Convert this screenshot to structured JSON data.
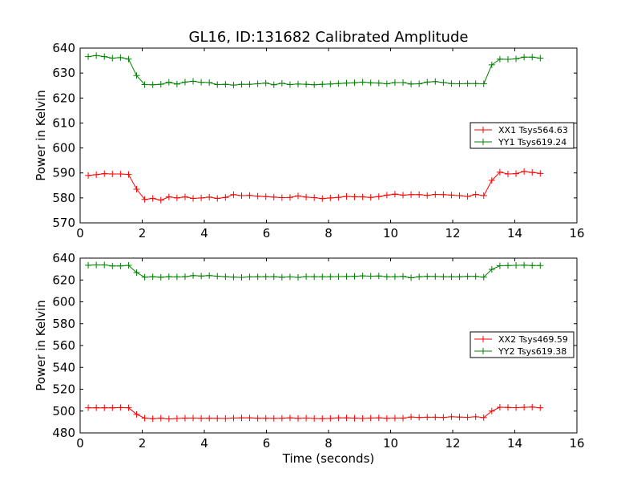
{
  "chart_data": [
    {
      "type": "line",
      "title": "GL16, ID:131682 Calibrated Amplitude",
      "xlabel": "",
      "ylabel": "Power in Kelvin",
      "xlim": [
        0,
        16
      ],
      "ylim": [
        570,
        640
      ],
      "xticks": [
        0,
        2,
        4,
        6,
        8,
        10,
        12,
        14,
        16
      ],
      "yticks": [
        570,
        580,
        590,
        600,
        610,
        620,
        630,
        640
      ],
      "grid": false,
      "legend_position": "center-right",
      "x": [
        0.26,
        0.52,
        0.78,
        1.04,
        1.3,
        1.56,
        1.82,
        2.08,
        2.34,
        2.6,
        2.86,
        3.12,
        3.38,
        3.64,
        3.9,
        4.16,
        4.42,
        4.68,
        4.94,
        5.2,
        5.46,
        5.72,
        5.98,
        6.24,
        6.5,
        6.76,
        7.02,
        7.28,
        7.54,
        7.8,
        8.06,
        8.32,
        8.58,
        8.84,
        9.1,
        9.36,
        9.62,
        9.88,
        10.14,
        10.4,
        10.66,
        10.92,
        11.18,
        11.44,
        11.7,
        11.96,
        12.22,
        12.48,
        12.74,
        13.0,
        13.26,
        13.52,
        13.78,
        14.04,
        14.3,
        14.56,
        14.82
      ],
      "series": [
        {
          "name": "XX1 Tsys564.63",
          "color": "#ff0000",
          "values": [
            589.0,
            589.3,
            589.7,
            589.6,
            589.6,
            589.4,
            583.5,
            579.4,
            579.8,
            579.1,
            580.4,
            580.0,
            580.4,
            579.8,
            580.0,
            580.3,
            579.8,
            580.2,
            581.3,
            580.9,
            581.0,
            580.7,
            580.5,
            580.3,
            580.1,
            580.2,
            580.8,
            580.3,
            580.1,
            579.7,
            580.0,
            580.2,
            580.6,
            580.4,
            580.4,
            580.2,
            580.5,
            581.1,
            581.5,
            581.1,
            581.3,
            581.3,
            581.0,
            581.4,
            581.3,
            581.1,
            580.9,
            580.6,
            581.4,
            580.9,
            587.0,
            590.3,
            589.6,
            589.7,
            590.6,
            590.2,
            589.8
          ]
        },
        {
          "name": "YY1 Tsys619.24",
          "color": "#008000",
          "values": [
            636.6,
            637.0,
            636.6,
            636.0,
            636.2,
            635.6,
            629.0,
            625.4,
            625.3,
            625.5,
            626.3,
            625.6,
            626.4,
            626.7,
            626.3,
            626.2,
            625.4,
            625.5,
            625.2,
            625.5,
            625.5,
            625.7,
            626.0,
            625.3,
            625.9,
            625.4,
            625.6,
            625.5,
            625.3,
            625.5,
            625.6,
            625.8,
            626.0,
            626.1,
            626.4,
            626.1,
            626.0,
            625.7,
            626.2,
            626.2,
            625.6,
            625.7,
            626.4,
            626.6,
            626.2,
            625.8,
            625.7,
            625.8,
            625.8,
            625.7,
            633.3,
            635.6,
            635.5,
            635.7,
            636.4,
            636.4,
            636.0
          ]
        }
      ]
    },
    {
      "type": "line",
      "title": "",
      "xlabel": "Time (seconds)",
      "ylabel": "Power in Kelvin",
      "xlim": [
        0,
        16
      ],
      "ylim": [
        480,
        640
      ],
      "xticks": [
        0,
        2,
        4,
        6,
        8,
        10,
        12,
        14,
        16
      ],
      "yticks": [
        480,
        500,
        520,
        540,
        560,
        580,
        600,
        620,
        640
      ],
      "grid": false,
      "legend_position": "center-right",
      "x": [
        0.26,
        0.52,
        0.78,
        1.04,
        1.3,
        1.56,
        1.82,
        2.08,
        2.34,
        2.6,
        2.86,
        3.12,
        3.38,
        3.64,
        3.9,
        4.16,
        4.42,
        4.68,
        4.94,
        5.2,
        5.46,
        5.72,
        5.98,
        6.24,
        6.5,
        6.76,
        7.02,
        7.28,
        7.54,
        7.8,
        8.06,
        8.32,
        8.58,
        8.84,
        9.1,
        9.36,
        9.62,
        9.88,
        10.14,
        10.4,
        10.66,
        10.92,
        11.18,
        11.44,
        11.7,
        11.96,
        12.22,
        12.48,
        12.74,
        13.0,
        13.26,
        13.52,
        13.78,
        14.04,
        14.3,
        14.56,
        14.82
      ],
      "series": [
        {
          "name": "XX2 Tsys469.59",
          "color": "#ff0000",
          "values": [
            503.0,
            503.0,
            503.0,
            503.0,
            503.2,
            503.0,
            497.0,
            493.5,
            493.0,
            493.5,
            492.8,
            493.2,
            493.5,
            493.6,
            493.3,
            493.4,
            493.3,
            493.2,
            493.6,
            493.8,
            493.8,
            493.4,
            493.4,
            493.3,
            493.4,
            493.8,
            493.3,
            493.6,
            493.2,
            493.1,
            493.3,
            493.7,
            493.8,
            493.5,
            493.2,
            493.6,
            493.8,
            493.3,
            493.6,
            493.5,
            494.6,
            494.2,
            494.4,
            494.4,
            494.2,
            494.8,
            494.5,
            494.3,
            494.8,
            494.0,
            500.0,
            503.5,
            503.3,
            503.1,
            503.4,
            503.7,
            503.0
          ]
        },
        {
          "name": "YY2 Tsys619.38",
          "color": "#008000",
          "values": [
            633.5,
            633.8,
            633.8,
            632.8,
            632.8,
            633.4,
            626.8,
            622.6,
            623.0,
            622.5,
            623.0,
            622.8,
            623.0,
            624.0,
            623.6,
            624.0,
            623.5,
            623.0,
            622.7,
            622.4,
            622.8,
            622.9,
            623.0,
            623.0,
            622.5,
            622.8,
            622.4,
            623.1,
            622.9,
            622.9,
            623.0,
            623.1,
            623.2,
            623.4,
            623.8,
            623.5,
            623.7,
            622.9,
            623.0,
            623.3,
            622.0,
            622.9,
            623.3,
            623.2,
            622.9,
            622.9,
            622.9,
            623.3,
            623.3,
            622.6,
            629.7,
            633.0,
            633.2,
            633.4,
            633.6,
            633.2,
            633.2
          ]
        }
      ]
    }
  ]
}
